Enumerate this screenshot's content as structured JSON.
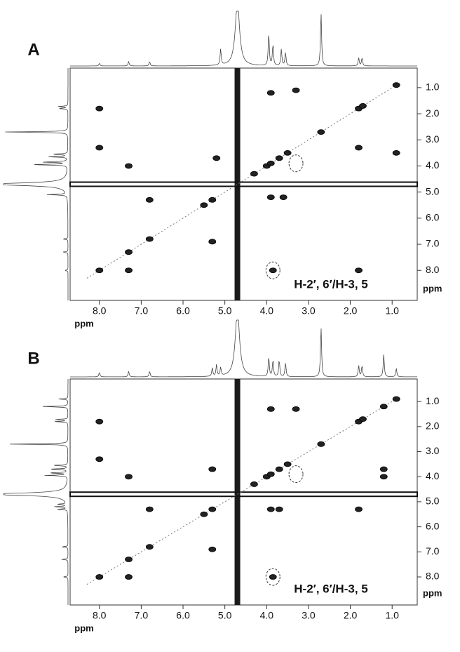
{
  "chart_data": [
    {
      "type": "nmr2d",
      "title": "A",
      "x_label": "ppm",
      "y_label": "ppm",
      "annotation": "H-2′, 6′/H-3, 5",
      "xlim": [
        8.7,
        0.4
      ],
      "ylim": [
        0.25,
        9.15
      ],
      "xticks": [
        {
          "value": 8,
          "label": "8.0"
        },
        {
          "value": 7,
          "label": "7.0"
        },
        {
          "value": 6,
          "label": "6.0"
        },
        {
          "value": 5,
          "label": "5.0"
        },
        {
          "value": 4,
          "label": "4.0"
        },
        {
          "value": 3,
          "label": "3.0"
        },
        {
          "value": 2,
          "label": "2.0"
        },
        {
          "value": 1,
          "label": "1.0"
        }
      ],
      "yticks": [
        {
          "value": 1,
          "label": "1.0"
        },
        {
          "value": 2,
          "label": "2.0"
        },
        {
          "value": 3,
          "label": "3.0"
        },
        {
          "value": 4,
          "label": "4.0"
        },
        {
          "value": 5,
          "label": "5.0"
        },
        {
          "value": 6,
          "label": "6.0"
        },
        {
          "value": 7,
          "label": "7.0"
        },
        {
          "value": 8,
          "label": "8.0"
        }
      ],
      "solvent_ppm": 4.7,
      "x": [
        8.0,
        7.3,
        6.8,
        5.5,
        5.3,
        4.3,
        4.0,
        3.9,
        3.7,
        3.5,
        2.7,
        1.8,
        1.7,
        0.9,
        8.0,
        8.0,
        7.3,
        7.3,
        6.8,
        5.2,
        5.3,
        3.6,
        3.9,
        3.3,
        1.8,
        1.8,
        0.9,
        3.9,
        3.85
      ],
      "values": [
        8.0,
        7.3,
        6.8,
        5.5,
        5.3,
        4.3,
        4.0,
        3.9,
        3.7,
        3.5,
        2.7,
        1.8,
        1.7,
        0.9,
        1.8,
        3.3,
        4.0,
        8.0,
        5.3,
        3.7,
        6.9,
        5.2,
        5.2,
        1.1,
        3.3,
        8.0,
        3.5,
        1.2,
        8.0
      ],
      "highlights": {
        "x": [
          3.3,
          3.85
        ],
        "y": [
          3.9,
          8.0
        ]
      },
      "projection": {
        "x": [
          8.0,
          7.3,
          6.8,
          5.1,
          4.7,
          3.95,
          3.85,
          3.65,
          3.55,
          2.7,
          1.8,
          1.72
        ],
        "values": [
          0.05,
          0.08,
          0.08,
          0.3,
          1.2,
          0.6,
          0.4,
          0.3,
          0.25,
          1.0,
          0.15,
          0.15
        ]
      }
    },
    {
      "type": "nmr2d",
      "title": "B",
      "x_label": "ppm",
      "y_label": "ppm",
      "annotation": "H-2′, 6′/H-3, 5",
      "xlim": [
        8.7,
        0.4
      ],
      "ylim": [
        0.1,
        9.12
      ],
      "xticks": [
        {
          "value": 8,
          "label": "8.0"
        },
        {
          "value": 7,
          "label": "7.0"
        },
        {
          "value": 6,
          "label": "6.0"
        },
        {
          "value": 5,
          "label": "5.0"
        },
        {
          "value": 4,
          "label": "4.0"
        },
        {
          "value": 3,
          "label": "3.0"
        },
        {
          "value": 2,
          "label": "2.0"
        },
        {
          "value": 1,
          "label": "1.0"
        }
      ],
      "yticks": [
        {
          "value": 1,
          "label": "1.0"
        },
        {
          "value": 2,
          "label": "2.0"
        },
        {
          "value": 3,
          "label": "3.0"
        },
        {
          "value": 4,
          "label": "4.0"
        },
        {
          "value": 5,
          "label": "5.0"
        },
        {
          "value": 6,
          "label": "6.0"
        },
        {
          "value": 7,
          "label": "7.0"
        },
        {
          "value": 8,
          "label": "8.0"
        }
      ],
      "solvent_ppm": 4.7,
      "x": [
        8.0,
        7.3,
        6.8,
        5.5,
        5.3,
        4.3,
        4.0,
        3.9,
        3.7,
        3.5,
        2.7,
        1.8,
        1.7,
        1.2,
        0.9,
        8.0,
        8.0,
        7.3,
        7.3,
        6.8,
        5.3,
        5.3,
        3.7,
        3.9,
        3.3,
        1.2,
        1.2,
        3.9,
        1.8,
        3.85
      ],
      "values": [
        8.0,
        7.3,
        6.8,
        5.5,
        5.3,
        4.3,
        4.0,
        3.9,
        3.7,
        3.5,
        2.7,
        1.8,
        1.7,
        1.2,
        0.9,
        1.8,
        3.3,
        4.0,
        8.0,
        5.3,
        3.7,
        6.9,
        5.3,
        1.3,
        1.3,
        3.7,
        4.0,
        5.3,
        5.3,
        8.0
      ],
      "highlights": {
        "x": [
          3.3,
          3.85
        ],
        "y": [
          3.9,
          8.0
        ]
      },
      "projection": {
        "x": [
          8.0,
          7.3,
          6.8,
          5.3,
          5.2,
          5.1,
          4.7,
          3.95,
          3.85,
          3.7,
          3.55,
          2.7,
          1.8,
          1.72,
          1.2,
          0.9
        ],
        "values": [
          0.08,
          0.1,
          0.1,
          0.15,
          0.2,
          0.15,
          1.2,
          0.35,
          0.3,
          0.3,
          0.25,
          0.9,
          0.2,
          0.2,
          0.4,
          0.15
        ]
      }
    }
  ]
}
